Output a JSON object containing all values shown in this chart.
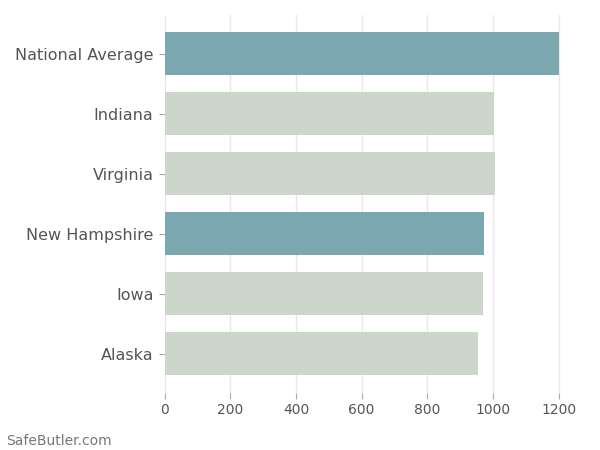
{
  "categories": [
    "Alaska",
    "Iowa",
    "New Hampshire",
    "Virginia",
    "Indiana",
    "National Average"
  ],
  "values": [
    955,
    968,
    973,
    1007,
    1002,
    1200
  ],
  "bar_colors": [
    "#ccd6cb",
    "#ccd6cb",
    "#7aa7b0",
    "#ccd6cb",
    "#ccd6cb",
    "#7aa7b0"
  ],
  "background_color": "#ffffff",
  "grid_color": "#e8e8e8",
  "plot_bg_color": "#ffffff",
  "xlim": [
    0,
    1280
  ],
  "xticks": [
    0,
    200,
    400,
    600,
    800,
    1000,
    1200
  ],
  "tick_label_color": "#555555",
  "bar_height": 0.72,
  "footer_text": "SafeButler.com",
  "footer_fontsize": 10,
  "tick_fontsize": 10,
  "label_fontsize": 11.5
}
